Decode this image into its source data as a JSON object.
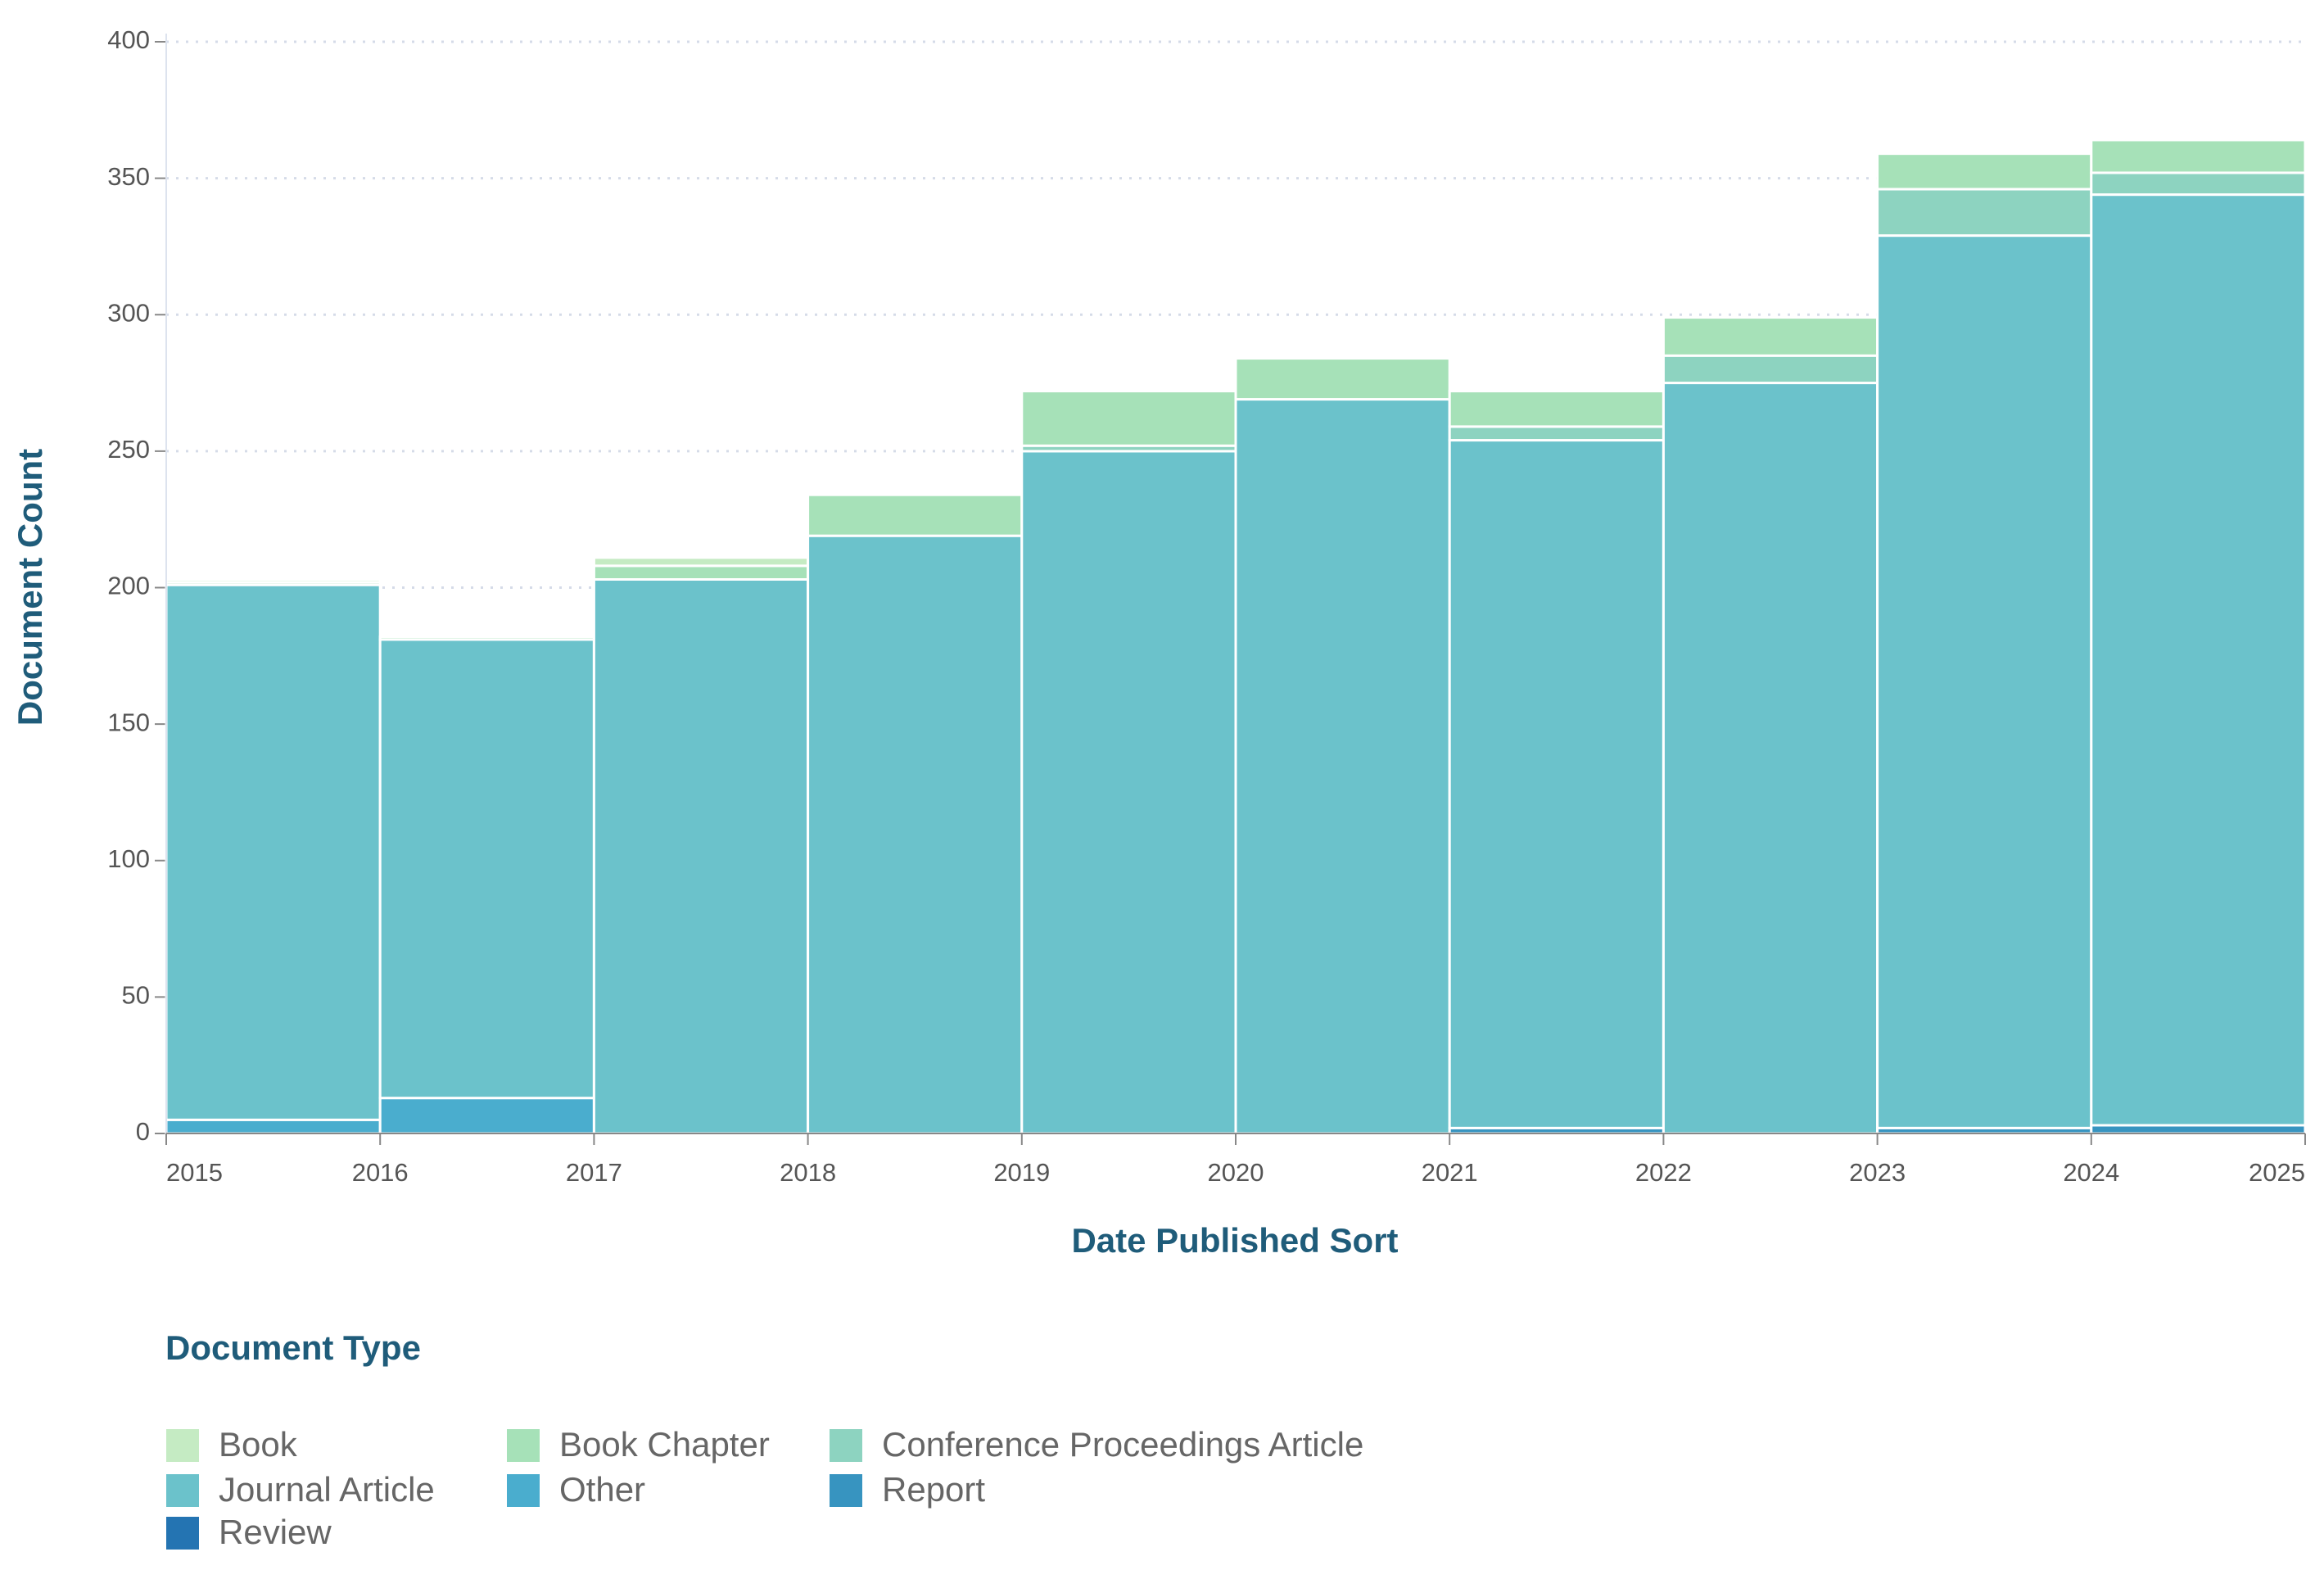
{
  "chart_data": {
    "type": "histogram",
    "x_label": "Date Published Sort",
    "y_label": "Document Count",
    "legend_title": "Document Type",
    "bins": [
      2015,
      2016,
      2017,
      2018,
      2019,
      2020,
      2021,
      2022,
      2023,
      2024,
      2025
    ],
    "xlim": [
      2015,
      2025
    ],
    "xticks": [
      2015,
      2016,
      2017,
      2018,
      2019,
      2020,
      2021,
      2022,
      2023,
      2024,
      2025
    ],
    "ylim": [
      0,
      400
    ],
    "yticks": [
      0,
      50,
      100,
      150,
      200,
      250,
      300,
      350,
      400
    ],
    "grid": true,
    "series": [
      {
        "name": "Book",
        "color": "#c5ebc3",
        "values": [
          1,
          0,
          3,
          0,
          0,
          0,
          0,
          0,
          0,
          0
        ]
      },
      {
        "name": "Book Chapter",
        "color": "#a6e1b8",
        "values": [
          1,
          1,
          5,
          15,
          20,
          15,
          13,
          14,
          13,
          12
        ]
      },
      {
        "name": "Conference Proceedings Article",
        "color": "#8dd3c0",
        "values": [
          0,
          0,
          0,
          0,
          2,
          0,
          5,
          10,
          17,
          8
        ]
      },
      {
        "name": "Journal Article",
        "color": "#6bc2cb",
        "values": [
          196,
          168,
          203,
          219,
          250,
          269,
          252,
          275,
          327,
          341
        ]
      },
      {
        "name": "Other",
        "color": "#4aadce",
        "values": [
          5,
          13,
          0,
          0,
          0,
          0,
          0,
          0,
          0,
          0
        ]
      },
      {
        "name": "Report",
        "color": "#3794c0",
        "values": [
          0,
          0,
          0,
          0,
          0,
          0,
          2,
          0,
          2,
          3
        ]
      },
      {
        "name": "Review",
        "color": "#2474b2",
        "values": [
          0,
          0,
          0,
          0,
          0,
          0,
          0,
          0,
          0,
          0
        ]
      }
    ]
  }
}
